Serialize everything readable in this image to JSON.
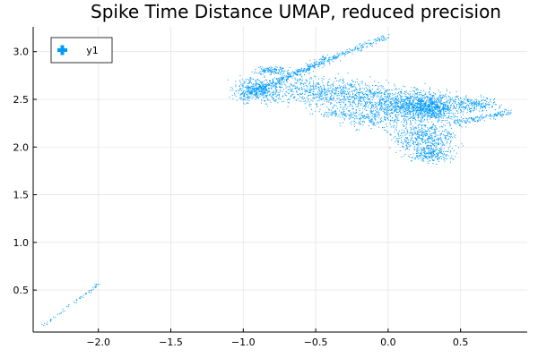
{
  "chart_data": {
    "type": "scatter",
    "title": "Spike Time Distance UMAP, reduced precision",
    "xlabel": "",
    "ylabel": "",
    "xlim": [
      -2.45,
      0.96
    ],
    "ylim": [
      0.06,
      3.26
    ],
    "xticks": [
      -2.0,
      -1.5,
      -1.0,
      -0.5,
      0.0,
      0.5
    ],
    "xtick_labels": [
      "−2.0",
      "−1.5",
      "−1.0",
      "−0.5",
      "0.0",
      "0.5"
    ],
    "yticks": [
      0.5,
      1.0,
      1.5,
      2.0,
      2.5,
      3.0
    ],
    "ytick_labels": [
      "0.5",
      "1.0",
      "1.5",
      "2.0",
      "2.5",
      "3.0"
    ],
    "grid": true,
    "legend": {
      "placement": "top-left"
    },
    "series": [
      {
        "name": "y1",
        "color": "#009AFA",
        "marker_size": 1,
        "clusters": [
          {
            "kind": "line",
            "from": [
              -2.38,
              0.13
            ],
            "to": [
              -2.0,
              0.56
            ],
            "spread": 0.015,
            "count": 60
          },
          {
            "kind": "line",
            "from": [
              -1.0,
              2.55
            ],
            "to": [
              0.0,
              3.16
            ],
            "spread": 0.03,
            "count": 350
          },
          {
            "kind": "line",
            "from": [
              -1.0,
              2.5
            ],
            "to": [
              -0.4,
              2.95
            ],
            "spread": 0.04,
            "count": 220
          },
          {
            "kind": "blob",
            "center": [
              -0.9,
              2.6
            ],
            "radius": [
              0.15,
              0.12
            ],
            "count": 380
          },
          {
            "kind": "blob",
            "center": [
              -0.8,
              2.8
            ],
            "radius": [
              0.1,
              0.04
            ],
            "count": 120
          },
          {
            "kind": "blob",
            "center": [
              -0.55,
              2.6
            ],
            "radius": [
              0.25,
              0.15
            ],
            "count": 350
          },
          {
            "kind": "blob",
            "center": [
              -0.25,
              2.55
            ],
            "radius": [
              0.25,
              0.14
            ],
            "count": 450
          },
          {
            "kind": "blob",
            "center": [
              0.15,
              2.45
            ],
            "radius": [
              0.3,
              0.15
            ],
            "count": 900
          },
          {
            "kind": "blob",
            "center": [
              0.3,
              2.4
            ],
            "radius": [
              0.2,
              0.12
            ],
            "count": 600
          },
          {
            "kind": "blob",
            "center": [
              0.25,
              2.1
            ],
            "radius": [
              0.2,
              0.15
            ],
            "count": 500
          },
          {
            "kind": "blob",
            "center": [
              0.3,
              1.92
            ],
            "radius": [
              0.14,
              0.08
            ],
            "count": 220
          },
          {
            "kind": "line",
            "from": [
              0.45,
              2.25
            ],
            "to": [
              0.84,
              2.37
            ],
            "spread": 0.03,
            "count": 150
          },
          {
            "kind": "blob",
            "center": [
              0.6,
              2.45
            ],
            "radius": [
              0.14,
              0.08
            ],
            "count": 200
          },
          {
            "kind": "blob",
            "center": [
              -0.1,
              2.3
            ],
            "radius": [
              0.2,
              0.1
            ],
            "count": 200
          },
          {
            "kind": "blob",
            "center": [
              -0.35,
              2.35
            ],
            "radius": [
              0.15,
              0.06
            ],
            "count": 80
          }
        ]
      }
    ]
  }
}
